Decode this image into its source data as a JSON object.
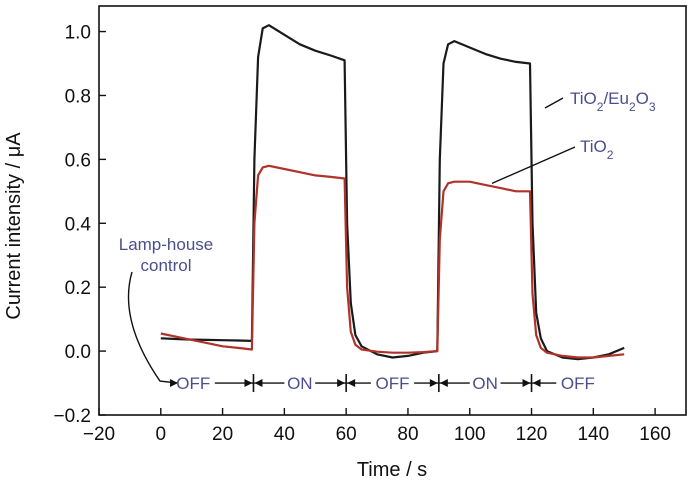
{
  "chart_data": {
    "type": "line",
    "xlabel": "Time / s",
    "ylabel": "Current intensity / μA",
    "xlim": [
      -20,
      170
    ],
    "ylim": [
      -0.2,
      1.08
    ],
    "xticks": [
      -20,
      0,
      20,
      40,
      60,
      80,
      100,
      120,
      140,
      160
    ],
    "xtick_labels": [
      "−20",
      "0",
      "20",
      "40",
      "60",
      "80",
      "100",
      "120",
      "140",
      "160"
    ],
    "yticks": [
      -0.2,
      0.0,
      0.2,
      0.4,
      0.6,
      0.8,
      1.0
    ],
    "ytick_labels": [
      "−0.2",
      "0.0",
      "0.2",
      "0.4",
      "0.6",
      "0.8",
      "1.0"
    ],
    "grid": false,
    "series": [
      {
        "name": "TiO2/Eu2O3",
        "color": "#1a1a1a",
        "x": [
          0,
          5,
          10,
          15,
          20,
          25,
          29.5,
          30.3,
          31.5,
          33,
          35,
          40,
          45,
          50,
          55,
          59.5,
          60.3,
          61.5,
          63,
          65,
          70,
          75,
          80,
          85,
          89.5,
          90.3,
          91.5,
          93,
          95,
          100,
          105,
          110,
          115,
          119.5,
          120.3,
          121.5,
          123,
          125,
          130,
          135,
          140,
          145,
          150
        ],
        "y": [
          0.04,
          0.038,
          0.036,
          0.035,
          0.034,
          0.033,
          0.032,
          0.6,
          0.92,
          1.01,
          1.02,
          0.99,
          0.96,
          0.94,
          0.925,
          0.91,
          0.4,
          0.15,
          0.05,
          0.015,
          -0.01,
          -0.02,
          -0.015,
          -0.005,
          0.0,
          0.6,
          0.9,
          0.96,
          0.97,
          0.95,
          0.93,
          0.915,
          0.905,
          0.9,
          0.4,
          0.12,
          0.04,
          0.0,
          -0.02,
          -0.025,
          -0.02,
          -0.01,
          0.01
        ]
      },
      {
        "name": "TiO2",
        "color": "#b0322a",
        "x": [
          0,
          5,
          10,
          15,
          20,
          25,
          29.5,
          30.3,
          31.5,
          33,
          35,
          40,
          45,
          50,
          55,
          59.5,
          60.3,
          61.5,
          63,
          65,
          70,
          75,
          80,
          85,
          89.5,
          90.3,
          91.5,
          93,
          95,
          100,
          105,
          110,
          115,
          119.5,
          120.3,
          121.5,
          123,
          125,
          130,
          135,
          140,
          145,
          150
        ],
        "y": [
          0.055,
          0.045,
          0.035,
          0.025,
          0.015,
          0.01,
          0.005,
          0.4,
          0.55,
          0.575,
          0.58,
          0.57,
          0.56,
          0.55,
          0.545,
          0.54,
          0.2,
          0.06,
          0.02,
          0.005,
          -0.002,
          -0.005,
          -0.005,
          -0.003,
          0.0,
          0.35,
          0.5,
          0.525,
          0.53,
          0.53,
          0.52,
          0.51,
          0.5,
          0.5,
          0.18,
          0.05,
          0.01,
          -0.005,
          -0.015,
          -0.02,
          -0.02,
          -0.015,
          -0.01
        ]
      }
    ],
    "series_labels": [
      {
        "parts": [
          [
            "TiO",
            ""
          ],
          [
            "2",
            "sub"
          ],
          [
            "/Eu",
            ""
          ],
          [
            "2",
            "sub"
          ],
          [
            "O",
            ""
          ],
          [
            "3",
            "sub"
          ]
        ],
        "color": "#4a4f8c"
      },
      {
        "parts": [
          [
            "TiO",
            ""
          ],
          [
            "2",
            "sub"
          ]
        ],
        "color": "#4a4f8c"
      }
    ],
    "annotation": {
      "lines": [
        "Lamp-house",
        "control"
      ],
      "color": "#4a4f8c"
    },
    "phases": {
      "labels": [
        "OFF",
        "ON",
        "OFF",
        "ON",
        "OFF"
      ],
      "bounds_x": [
        30,
        60,
        90,
        120
      ],
      "y": -0.1,
      "color": "#4a4f8c"
    }
  }
}
